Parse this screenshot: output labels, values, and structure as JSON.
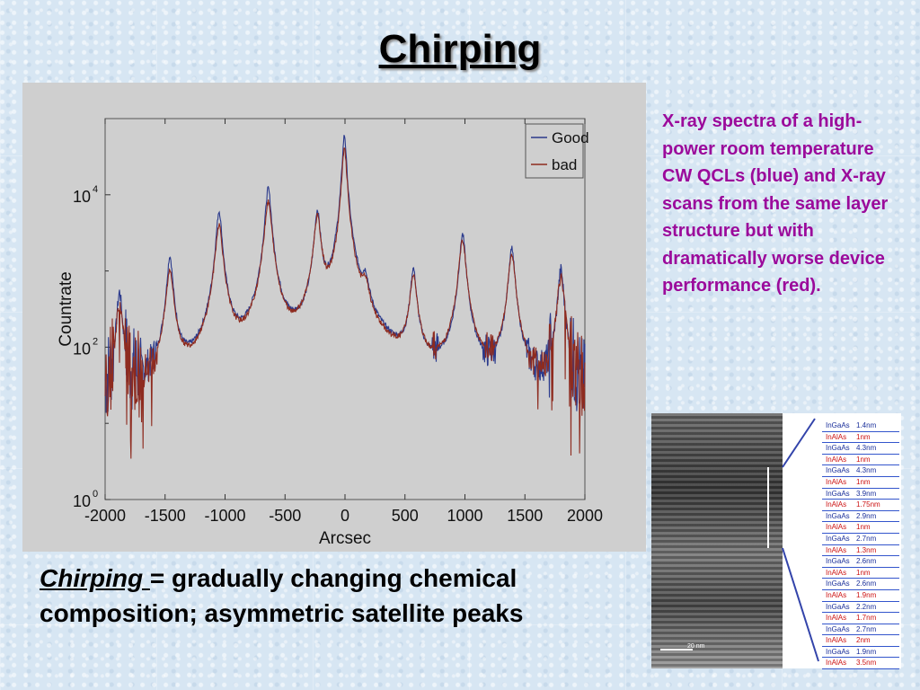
{
  "slide": {
    "title": "Chirping",
    "caption": "X-ray spectra of a high-power room temperature CW QCLs (blue) and X-ray scans from the same layer structure but with dramatically worse device performance (red).",
    "definition": {
      "term": "Chirping ",
      "rest": "= gradually changing chemical composition; asymmetric satellite peaks"
    }
  },
  "chart_data": {
    "type": "line",
    "xlabel": "Arcsec",
    "ylabel": "Countrate",
    "xlim": [
      -2000,
      2000
    ],
    "ylim_log10": [
      0,
      5
    ],
    "y_scale": "log",
    "xticks": [
      -2000,
      -1500,
      -1000,
      -500,
      0,
      500,
      1000,
      1500,
      2000
    ],
    "yticks": [
      {
        "value": 1,
        "base": "10",
        "exp": "0"
      },
      {
        "value": 100,
        "base": "10",
        "exp": "2"
      },
      {
        "value": 10000,
        "base": "10",
        "exp": "4"
      }
    ],
    "legend": {
      "position": "top-right"
    },
    "colors": {
      "Good": "#2b3a8c",
      "bad": "#8e2b1f"
    },
    "background": 10,
    "series": [
      {
        "name": "Good",
        "peaks": [
          {
            "x": -1880,
            "y": 500,
            "w": 20
          },
          {
            "x": -1460,
            "y": 1500,
            "w": 22
          },
          {
            "x": -1050,
            "y": 6000,
            "w": 22
          },
          {
            "x": -640,
            "y": 12000,
            "w": 22
          },
          {
            "x": -230,
            "y": 6000,
            "w": 22
          },
          {
            "x": -5,
            "y": 60000,
            "w": 16
          },
          {
            "x": 170,
            "y": 500,
            "w": 25
          },
          {
            "x": 570,
            "y": 1000,
            "w": 22
          },
          {
            "x": 980,
            "y": 3000,
            "w": 22
          },
          {
            "x": 1390,
            "y": 2000,
            "w": 22
          },
          {
            "x": 1800,
            "y": 1000,
            "w": 22
          }
        ]
      },
      {
        "name": "bad",
        "peaks": [
          {
            "x": -1880,
            "y": 350,
            "w": 24
          },
          {
            "x": -1460,
            "y": 1000,
            "w": 26
          },
          {
            "x": -1050,
            "y": 4000,
            "w": 26
          },
          {
            "x": -640,
            "y": 8000,
            "w": 26
          },
          {
            "x": -230,
            "y": 5000,
            "w": 26
          },
          {
            "x": -5,
            "y": 40000,
            "w": 18
          },
          {
            "x": 170,
            "y": 400,
            "w": 28
          },
          {
            "x": 570,
            "y": 800,
            "w": 26
          },
          {
            "x": 980,
            "y": 2500,
            "w": 26
          },
          {
            "x": 1390,
            "y": 1600,
            "w": 26
          },
          {
            "x": 1800,
            "y": 800,
            "w": 26
          }
        ]
      }
    ]
  },
  "tem": {
    "scale_label": "20 nm",
    "layers": [
      {
        "material": "InGaAs",
        "thickness": "1.4nm"
      },
      {
        "material": "InAlAs",
        "thickness": "1nm"
      },
      {
        "material": "InGaAs",
        "thickness": "4.3nm"
      },
      {
        "material": "InAlAs",
        "thickness": "1nm"
      },
      {
        "material": "InGaAs",
        "thickness": "4.3nm"
      },
      {
        "material": "InAlAs",
        "thickness": "1nm"
      },
      {
        "material": "InGaAs",
        "thickness": "3.9nm"
      },
      {
        "material": "InAlAs",
        "thickness": "1.75nm"
      },
      {
        "material": "InGaAs",
        "thickness": "2.9nm"
      },
      {
        "material": "InAlAs",
        "thickness": "1nm"
      },
      {
        "material": "InGaAs",
        "thickness": "2.7nm"
      },
      {
        "material": "InAlAs",
        "thickness": "1.3nm"
      },
      {
        "material": "InGaAs",
        "thickness": "2.6nm"
      },
      {
        "material": "InAlAs",
        "thickness": "1nm"
      },
      {
        "material": "InGaAs",
        "thickness": "2.6nm"
      },
      {
        "material": "InAlAs",
        "thickness": "1.9nm"
      },
      {
        "material": "InGaAs",
        "thickness": "2.2nm"
      },
      {
        "material": "InAlAs",
        "thickness": "1.7nm"
      },
      {
        "material": "InGaAs",
        "thickness": "2.7nm"
      },
      {
        "material": "InAlAs",
        "thickness": "2nm"
      },
      {
        "material": "InGaAs",
        "thickness": "1.9nm"
      },
      {
        "material": "InAlAs",
        "thickness": "3.5nm"
      }
    ]
  }
}
